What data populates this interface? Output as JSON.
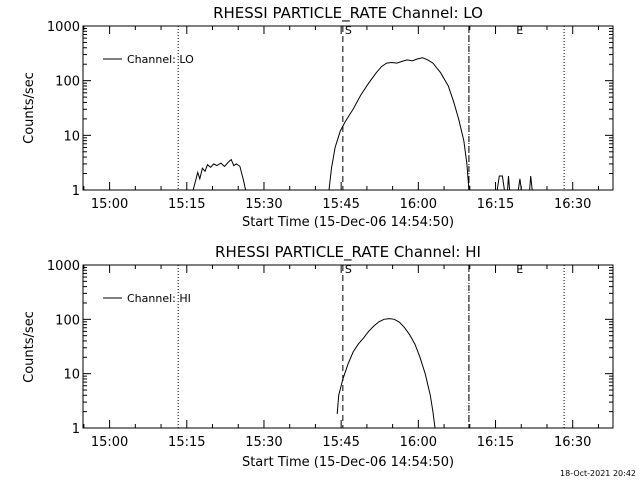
{
  "footer": {
    "timestamp": "18-Oct-2021 20:42"
  },
  "chart_data": [
    {
      "type": "line",
      "title": "RHESSI PARTICLE_RATE Channel: LO",
      "xlabel": "Start Time (15-Dec-06 14:54:50)",
      "ylabel": "Counts/sec",
      "y_scale": "log",
      "ylim": [
        1,
        1000
      ],
      "y_tick_labels": [
        "1",
        "10",
        "100",
        "1000"
      ],
      "y_tick_values": [
        1,
        10,
        100,
        1000
      ],
      "x_unit": "minutes since 14:54:50",
      "xlim": [
        0,
        103
      ],
      "x_tick_labels": [
        "15:00",
        "15:15",
        "15:30",
        "15:45",
        "16:00",
        "16:15",
        "16:30"
      ],
      "x_tick_values": [
        5.17,
        20.17,
        35.17,
        50.17,
        65.17,
        80.17,
        95.17
      ],
      "legend": {
        "position": "top-left",
        "entries": [
          "Channel: LO"
        ]
      },
      "dotted_lines_x": [
        18.5,
        75.0,
        93.5
      ],
      "dashed_lines_x": [
        50.5,
        75.0
      ],
      "markers": [
        {
          "label": "S",
          "x": 50.5
        },
        {
          "label": "E",
          "x": 84.0
        }
      ],
      "series": [
        {
          "name": "Channel: LO",
          "segments": [
            [
              [
                21.4,
                1
              ],
              [
                21.9,
                1.5
              ],
              [
                22.3,
                2.1
              ],
              [
                22.7,
                1.6
              ],
              [
                23.2,
                2.5
              ],
              [
                23.7,
                2.2
              ],
              [
                24.2,
                2.9
              ],
              [
                24.8,
                2.6
              ],
              [
                25.4,
                3.0
              ],
              [
                26.0,
                2.8
              ],
              [
                26.8,
                3.1
              ],
              [
                27.5,
                2.7
              ],
              [
                28.2,
                3.2
              ],
              [
                28.8,
                3.6
              ],
              [
                29.3,
                2.8
              ],
              [
                29.8,
                3.0
              ],
              [
                30.5,
                2.7
              ],
              [
                31.2,
                1.5
              ],
              [
                31.6,
                1
              ]
            ],
            [
              [
                47.8,
                1
              ],
              [
                48.3,
                2.5
              ],
              [
                49.0,
                6
              ],
              [
                50.0,
                12
              ],
              [
                51.0,
                18
              ],
              [
                52.5,
                30
              ],
              [
                54.0,
                55
              ],
              [
                55.5,
                90
              ],
              [
                57.0,
                140
              ],
              [
                58.0,
                180
              ],
              [
                59.0,
                210
              ],
              [
                60.0,
                215
              ],
              [
                61.0,
                210
              ],
              [
                62.0,
                225
              ],
              [
                63.0,
                240
              ],
              [
                64.0,
                230
              ],
              [
                65.0,
                250
              ],
              [
                66.0,
                262
              ],
              [
                67.0,
                240
              ],
              [
                68.0,
                210
              ],
              [
                69.5,
                140
              ],
              [
                71.0,
                80
              ],
              [
                72.0,
                42
              ],
              [
                73.0,
                20
              ],
              [
                74.0,
                8
              ],
              [
                74.6,
                3
              ],
              [
                75.0,
                1
              ]
            ],
            [
              [
                80.5,
                1
              ],
              [
                80.9,
                1.8
              ],
              [
                81.5,
                1.8
              ],
              [
                81.9,
                1
              ]
            ],
            [
              [
                82.5,
                1
              ],
              [
                82.7,
                1.8
              ],
              [
                82.9,
                1
              ]
            ],
            [
              [
                84.6,
                1
              ],
              [
                84.9,
                1.6
              ],
              [
                85.2,
                1
              ]
            ],
            [
              [
                86.8,
                1
              ],
              [
                87.0,
                1.8
              ],
              [
                87.3,
                1
              ]
            ]
          ]
        }
      ]
    },
    {
      "type": "line",
      "title": "RHESSI PARTICLE_RATE Channel: HI",
      "xlabel": "Start Time (15-Dec-06 14:54:50)",
      "ylabel": "Counts/sec",
      "y_scale": "log",
      "ylim": [
        1,
        1000
      ],
      "y_tick_labels": [
        "1",
        "10",
        "100",
        "1000"
      ],
      "y_tick_values": [
        1,
        10,
        100,
        1000
      ],
      "x_unit": "minutes since 14:54:50",
      "xlim": [
        0,
        103
      ],
      "x_tick_labels": [
        "15:00",
        "15:15",
        "15:30",
        "15:45",
        "16:00",
        "16:15",
        "16:30"
      ],
      "x_tick_values": [
        5.17,
        20.17,
        35.17,
        50.17,
        65.17,
        80.17,
        95.17
      ],
      "legend": {
        "position": "top-left",
        "entries": [
          "Channel: HI"
        ]
      },
      "dotted_lines_x": [
        18.5,
        75.0,
        93.5
      ],
      "dashed_lines_x": [
        50.5,
        75.0
      ],
      "markers": [
        {
          "label": "S",
          "x": 50.5
        },
        {
          "label": "E",
          "x": 84.0
        }
      ],
      "series": [
        {
          "name": "Channel: HI",
          "segments": [
            [
              [
                49.4,
                1.8
              ],
              [
                49.7,
                4
              ],
              [
                50.5,
                8
              ],
              [
                51.5,
                15
              ],
              [
                52.5,
                25
              ],
              [
                53.5,
                35
              ],
              [
                54.5,
                45
              ],
              [
                55.5,
                60
              ],
              [
                56.5,
                75
              ],
              [
                57.5,
                90
              ],
              [
                58.5,
                100
              ],
              [
                59.5,
                103
              ],
              [
                60.5,
                100
              ],
              [
                61.5,
                88
              ],
              [
                62.5,
                70
              ],
              [
                63.5,
                52
              ],
              [
                64.5,
                35
              ],
              [
                65.5,
                20
              ],
              [
                66.5,
                10
              ],
              [
                67.5,
                4
              ],
              [
                68.0,
                2
              ],
              [
                68.4,
                1
              ]
            ]
          ]
        }
      ]
    }
  ]
}
